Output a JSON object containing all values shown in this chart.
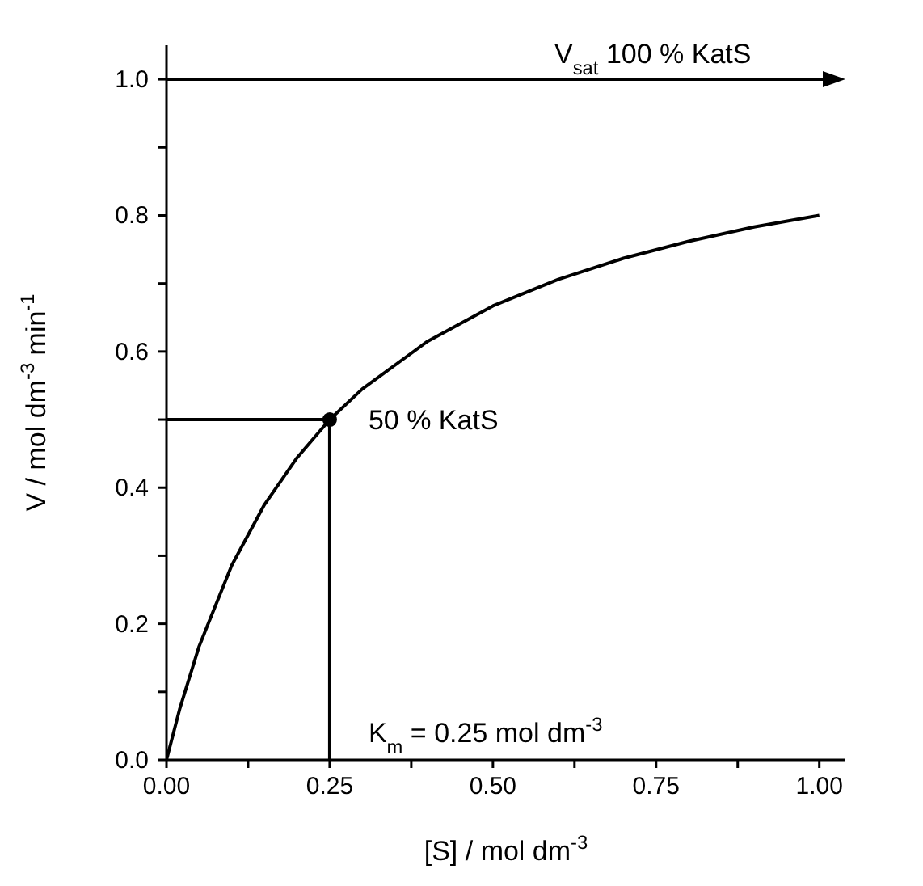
{
  "chart_data": {
    "type": "line",
    "xlabel": "[S] / mol dm$^{-3}$",
    "ylabel": "V / mol dm$^{-3}$ min$^{-1}$",
    "series": [
      {
        "color": "#000000",
        "marker": "none",
        "x": [
          0,
          0.02,
          0.05,
          0.1,
          0.15,
          0.2,
          0.25,
          0.3,
          0.4,
          0.5,
          0.6,
          0.7,
          0.8,
          0.9,
          1.0
        ],
        "values": [
          0,
          0.074,
          0.167,
          0.286,
          0.375,
          0.444,
          0.5,
          0.545,
          0.615,
          0.667,
          0.706,
          0.737,
          0.762,
          0.783,
          0.8
        ]
      },
      {
        "color": "#000000",
        "marker": "none",
        "x": [
          0,
          0.25,
          0.25
        ],
        "values": [
          0.5,
          0.5,
          0
        ]
      },
      {
        "type": "scatter",
        "color": "#000000",
        "marker": "circle",
        "x": [
          0.25
        ],
        "values": [
          0.5
        ]
      }
    ],
    "ref_lines": [
      {
        "axis": "y",
        "value": 1.0,
        "label": "V$_{sat}$  100 % KatS",
        "color": "#000000",
        "line_style": "solid"
      }
    ],
    "annotations": [
      {
        "text": "50 % KatS",
        "x": 0.25,
        "y": 0.5
      },
      {
        "text": "K$_{m}$ = 0.25 mol dm$^{-3}$",
        "x": 0.25,
        "y": 0.04
      }
    ],
    "xlim": [
      0,
      1.04
    ],
    "xticks": [
      {
        "value": 0,
        "label": "0.00"
      },
      {
        "value": 0.125,
        "label": null
      },
      {
        "value": 0.25,
        "label": "0.25"
      },
      {
        "value": 0.375,
        "label": null
      },
      {
        "value": 0.5,
        "label": "0.50"
      },
      {
        "value": 0.625,
        "label": null
      },
      {
        "value": 0.75,
        "label": "0.75"
      },
      {
        "value": 0.875,
        "label": null
      },
      {
        "value": 1.0,
        "label": "1.00"
      }
    ],
    "ylim": [
      0,
      1.05
    ],
    "yticks": [
      {
        "value": 0,
        "label": "0.0"
      },
      {
        "value": 0.1,
        "label": null
      },
      {
        "value": 0.2,
        "label": "0.2"
      },
      {
        "value": 0.3,
        "label": null
      },
      {
        "value": 0.4,
        "label": "0.4"
      },
      {
        "value": 0.5,
        "label": null
      },
      {
        "value": 0.6,
        "label": "0.6"
      },
      {
        "value": 0.7,
        "label": null
      },
      {
        "value": 0.8,
        "label": "0.8"
      },
      {
        "value": 0.9,
        "label": null
      },
      {
        "value": 1.0,
        "label": "1.0"
      }
    ],
    "grid": false
  }
}
